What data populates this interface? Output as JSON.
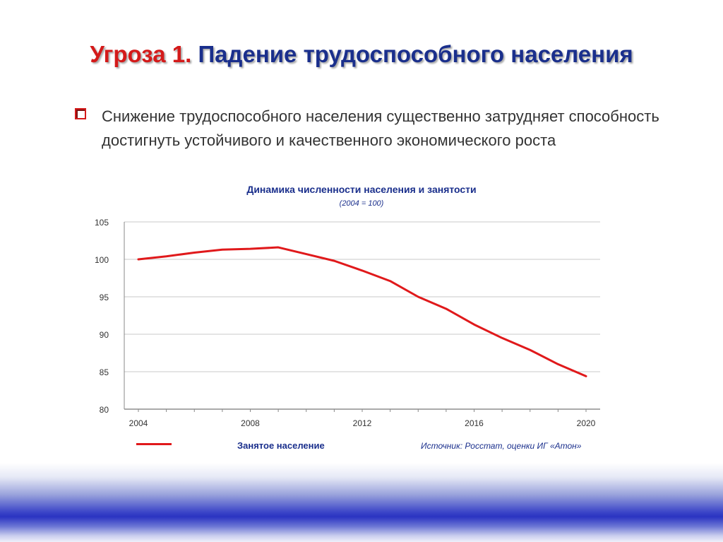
{
  "slide": {
    "title_part1": "Угроза 1.",
    "title_part2": "Падение трудоспособного населения",
    "bullet": "Снижение трудоспособного населения существенно затрудняет способность достигнуть устойчивого и качественного экономического роста"
  },
  "chart_data": {
    "type": "line",
    "title": "Динамика численности населения и занятости",
    "subtitle": "(2004 = 100)",
    "xlabel": "",
    "ylabel": "",
    "x": [
      2004,
      2005,
      2006,
      2007,
      2008,
      2009,
      2010,
      2011,
      2012,
      2013,
      2014,
      2015,
      2016,
      2017,
      2018,
      2019,
      2020
    ],
    "x_ticks": [
      "2004",
      "2008",
      "2012",
      "2016",
      "2020"
    ],
    "y_ticks": [
      "80",
      "85",
      "90",
      "95",
      "100",
      "105"
    ],
    "ylim": [
      80,
      105
    ],
    "xlim": [
      2004,
      2020
    ],
    "grid": true,
    "series": [
      {
        "name": "Занятое население",
        "color": "#e0191b",
        "values": [
          100.0,
          100.4,
          100.9,
          101.3,
          101.4,
          101.6,
          100.7,
          99.8,
          98.5,
          97.1,
          95.0,
          93.4,
          91.3,
          89.5,
          87.9,
          86.0,
          84.4
        ]
      }
    ],
    "legend_position": "bottom-left",
    "source": "Источник: Росстат, оценки ИГ «Атон»"
  }
}
